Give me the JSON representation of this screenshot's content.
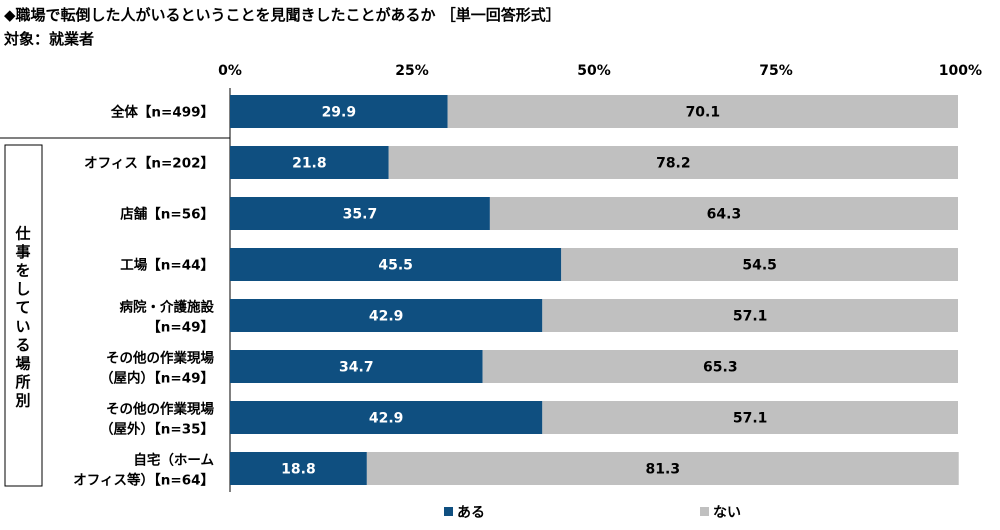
{
  "title": "◆職場で転倒した人がいるということを見聞きしたことがあるか ［単一回答形式］",
  "subtitle": "対象：就業者",
  "colors": {
    "a": "#0f4f80",
    "b": "#c0c0c0"
  },
  "chart_data": {
    "type": "bar",
    "orientation": "horizontal",
    "stacked": true,
    "xlim": [
      0,
      100
    ],
    "xticks": [
      "0%",
      "25%",
      "50%",
      "75%",
      "100%"
    ],
    "categories": [
      [
        "全体【n=499】"
      ],
      [
        "オフィス【n=202】"
      ],
      [
        "店舗【n=56】"
      ],
      [
        "工場【n=44】"
      ],
      [
        "病院・介護施設",
        "【n=49】"
      ],
      [
        "その他の作業現場",
        "（屋内）【n=49】"
      ],
      [
        "その他の作業現場",
        "（屋外）【n=35】"
      ],
      [
        "自宅（ホーム",
        "オフィス等）【n=64】"
      ]
    ],
    "series": [
      {
        "name": "ある",
        "values": [
          29.9,
          21.8,
          35.7,
          45.5,
          42.9,
          34.7,
          42.9,
          18.8
        ]
      },
      {
        "name": "ない",
        "values": [
          70.1,
          78.2,
          64.3,
          54.5,
          57.1,
          65.3,
          57.1,
          81.3
        ]
      }
    ],
    "group_label": "仕事をしている場所別",
    "legend_position": "bottom"
  }
}
